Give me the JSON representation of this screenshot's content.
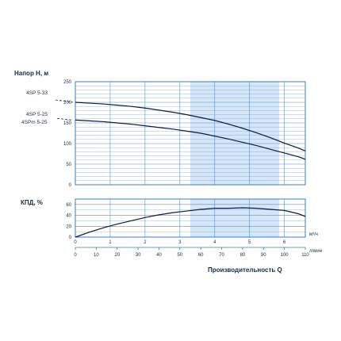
{
  "chart_data": {
    "type": "line",
    "colors": {
      "frame": "#3a7cc1",
      "grid": "#5a8fc8",
      "band": "#d4e6f7",
      "curve": "#0d1b3a",
      "text": "#1a2a4a"
    },
    "units": {
      "flow_m3h": "м³/ч",
      "flow_lmin": "л/мин"
    },
    "xlabel": "Производительность Q",
    "shared_x": {
      "m3h_ticks": [
        0,
        1,
        2,
        3,
        4,
        5,
        6
      ],
      "m3h_range": [
        0,
        6.6
      ],
      "lmin_ticks": [
        0,
        10,
        20,
        30,
        40,
        50,
        60,
        70,
        80,
        90,
        100,
        110
      ],
      "lmin_range": [
        0,
        110
      ]
    },
    "recommended_band_m3h": [
      3.3,
      5.85
    ],
    "head": {
      "ylabel": "Напор H, м",
      "ylim": [
        0,
        250
      ],
      "yticks": [
        0,
        50,
        100,
        150,
        200,
        250
      ],
      "series": [
        {
          "name": "4SP 5-33",
          "x": [
            0,
            0.4,
            0.8,
            1.2,
            1.6,
            2.0,
            2.4,
            2.8,
            3.2,
            3.6,
            4.0,
            4.4,
            4.8,
            5.2,
            5.6,
            6.0,
            6.4,
            6.6
          ],
          "y": [
            200,
            198,
            196,
            193,
            190,
            186,
            181,
            176,
            170,
            163,
            156,
            147,
            137,
            126,
            114,
            101,
            89,
            82
          ]
        },
        {
          "name": "4SP 5-25",
          "x": [
            0,
            0.4,
            0.8,
            1.2,
            1.6,
            2.0,
            2.4,
            2.8,
            3.2,
            3.6,
            4.0,
            4.4,
            4.8,
            5.2,
            5.6,
            6.0,
            6.4,
            6.6
          ],
          "y": [
            157,
            155,
            153,
            150,
            147,
            143,
            139,
            135,
            130,
            125,
            118,
            111,
            103,
            95,
            86,
            77,
            68,
            62
          ]
        },
        {
          "name": "4SPm 5-25",
          "x": [],
          "y": []
        }
      ]
    },
    "efficiency": {
      "ylabel": "КПД, %",
      "ylim": [
        0,
        70
      ],
      "yticks": [
        0,
        20,
        40,
        60
      ],
      "series": [
        {
          "name": "efficiency",
          "x": [
            0,
            0.4,
            0.8,
            1.2,
            1.6,
            2.0,
            2.4,
            2.8,
            3.2,
            3.6,
            4.0,
            4.4,
            4.8,
            5.2,
            5.6,
            6.0,
            6.4,
            6.6
          ],
          "y": [
            0,
            9,
            17,
            24,
            30,
            36,
            41,
            45,
            48,
            51,
            53,
            53,
            54,
            53,
            51,
            49,
            43,
            38
          ]
        }
      ]
    }
  }
}
